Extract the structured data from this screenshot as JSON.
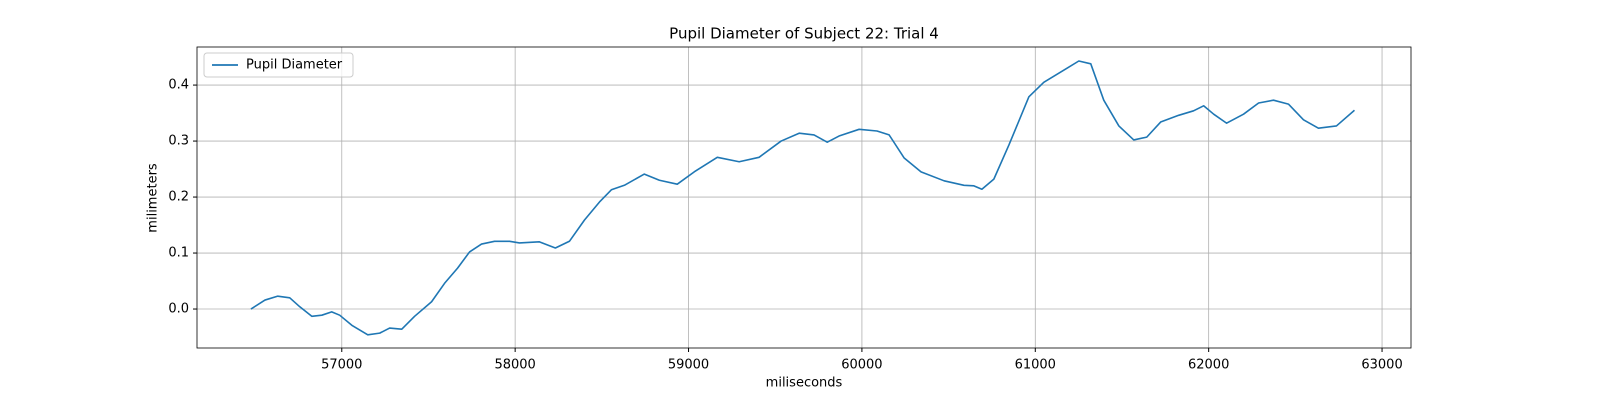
{
  "chart_data": {
    "type": "line",
    "title": "Pupil Diameter of Subject 22: Trial 4",
    "x_label": "miliseconds",
    "y_label": "milimeters",
    "x": [
      56476,
      56557,
      56631,
      56700,
      56758,
      56827,
      56885,
      56942,
      56988,
      57058,
      57150,
      57219,
      57276,
      57346,
      57420,
      57518,
      57593,
      57668,
      57737,
      57806,
      57881,
      57968,
      58025,
      58140,
      58232,
      58313,
      58400,
      58486,
      58555,
      58630,
      58745,
      58832,
      58935,
      59033,
      59166,
      59292,
      59407,
      59534,
      59638,
      59724,
      59800,
      59868,
      59984,
      60087,
      60157,
      60243,
      60341,
      60474,
      60589,
      60646,
      60692,
      60761,
      60848,
      60963,
      61049,
      61182,
      61251,
      61320,
      61395,
      61482,
      61568,
      61643,
      61723,
      61827,
      61913,
      61971,
      62029,
      62103,
      62201,
      62288,
      62374,
      62460,
      62547,
      62633,
      62737,
      62841
    ],
    "series": [
      {
        "name": "Pupil Diameter",
        "color": "#1f77b4",
        "values": [
          0.0,
          0.016,
          0.023,
          0.02,
          0.004,
          -0.013,
          -0.011,
          -0.005,
          -0.011,
          -0.029,
          -0.046,
          -0.043,
          -0.034,
          -0.036,
          -0.013,
          0.013,
          0.046,
          0.073,
          0.102,
          0.116,
          0.121,
          0.121,
          0.118,
          0.12,
          0.109,
          0.121,
          0.159,
          0.191,
          0.213,
          0.221,
          0.241,
          0.23,
          0.223,
          0.245,
          0.271,
          0.263,
          0.271,
          0.3,
          0.314,
          0.311,
          0.298,
          0.309,
          0.321,
          0.318,
          0.311,
          0.27,
          0.245,
          0.229,
          0.221,
          0.22,
          0.214,
          0.232,
          0.293,
          0.379,
          0.405,
          0.43,
          0.443,
          0.438,
          0.373,
          0.327,
          0.302,
          0.307,
          0.334,
          0.346,
          0.354,
          0.363,
          0.348,
          0.332,
          0.348,
          0.368,
          0.373,
          0.366,
          0.338,
          0.323,
          0.327,
          0.355
        ]
      }
    ],
    "xlim": [
      56165,
      63167
    ],
    "ylim": [
      -0.0696,
      0.468
    ],
    "xticks": [
      57000,
      58000,
      59000,
      60000,
      61000,
      62000,
      63000
    ],
    "yticks": [
      {
        "value": 0,
        "label": "0.0"
      },
      0.1,
      0.2,
      0.3,
      0.4
    ],
    "grid": true,
    "legend": "upper-left"
  }
}
